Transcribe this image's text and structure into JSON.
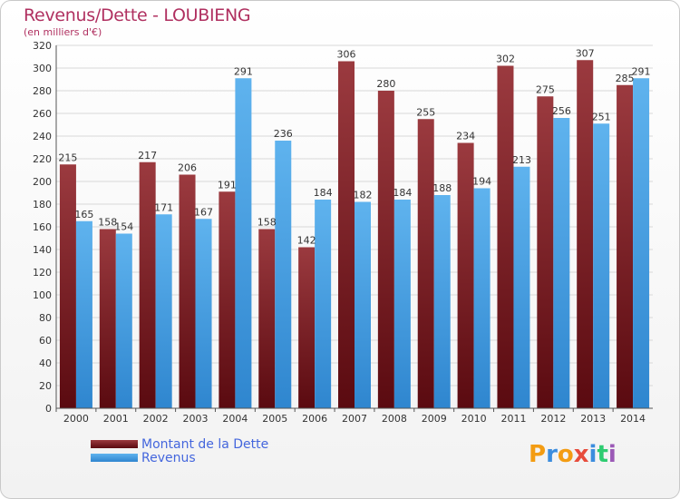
{
  "title": "Revenus/Dette - LOUBIENG",
  "subtitle": "(en milliers d'€)",
  "logo": {
    "letters": [
      "P",
      "r",
      "o",
      "x",
      "i",
      "t",
      "i"
    ],
    "colors": [
      "#f39c12",
      "#3c8dde",
      "#f39c12",
      "#e74c3c",
      "#3c8dde",
      "#2ecc71",
      "#9b59b6"
    ]
  },
  "chart_data": {
    "type": "bar",
    "categories": [
      "2000",
      "2001",
      "2002",
      "2003",
      "2004",
      "2005",
      "2006",
      "2007",
      "2008",
      "2009",
      "2010",
      "2011",
      "2012",
      "2013",
      "2014"
    ],
    "series": [
      {
        "name": "Montant de la Dette",
        "color": "#8b2a2f",
        "values": [
          215,
          158,
          217,
          206,
          191,
          158,
          142,
          306,
          280,
          255,
          234,
          302,
          275,
          307,
          285
        ]
      },
      {
        "name": "Revenus",
        "color": "#4ea6e6",
        "values": [
          165,
          154,
          171,
          167,
          291,
          236,
          184,
          182,
          184,
          188,
          194,
          213,
          256,
          251,
          291
        ]
      }
    ],
    "yticks": [
      0,
      20,
      40,
      60,
      80,
      100,
      120,
      140,
      160,
      180,
      200,
      220,
      240,
      260,
      280,
      300,
      320
    ],
    "ylim": [
      0,
      320
    ],
    "grid": true,
    "legend": "bottom-left"
  }
}
